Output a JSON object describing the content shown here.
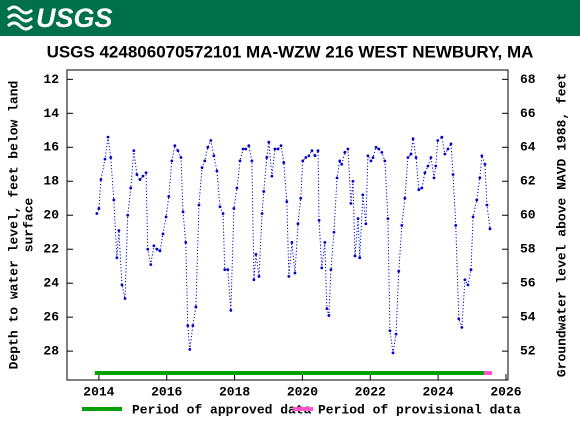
{
  "logo": "USGS",
  "chart_data": {
    "type": "line",
    "title": "USGS 424806070572101 MA-WZW  216 WEST NEWBURY, MA",
    "ylabel": [
      "Depth to water level, feet below land",
      "surface"
    ],
    "y2label": "Groundwater level above NAVD 1988, feet",
    "xlim": [
      2013.06,
      2026.06
    ],
    "xticks": [
      2014,
      2016,
      2018,
      2020,
      2022,
      2024,
      2026
    ],
    "ylim": [
      11.45,
      29.7
    ],
    "yticks": [
      12,
      14,
      16,
      18,
      20,
      22,
      24,
      26,
      28
    ],
    "y_inverted": true,
    "y2lim": [
      68.55,
      50.3
    ],
    "y2ticks": [
      52,
      54,
      56,
      58,
      60,
      62,
      64,
      66,
      68
    ],
    "series": [
      {
        "color": "#0000cc",
        "x": [
          2013.94,
          2014.0,
          2014.06,
          2014.18,
          2014.27,
          2014.35,
          2014.44,
          2014.53,
          2014.59,
          2014.68,
          2014.77,
          2014.85,
          2014.94,
          2015.03,
          2015.12,
          2015.21,
          2015.3,
          2015.39,
          2015.44,
          2015.53,
          2015.62,
          2015.71,
          2015.8,
          2015.89,
          2015.98,
          2016.06,
          2016.15,
          2016.24,
          2016.33,
          2016.42,
          2016.48,
          2016.56,
          2016.62,
          2016.68,
          2016.77,
          2016.86,
          2016.95,
          2017.04,
          2017.12,
          2017.21,
          2017.3,
          2017.39,
          2017.48,
          2017.57,
          2017.66,
          2017.71,
          2017.8,
          2017.89,
          2017.98,
          2018.07,
          2018.16,
          2018.25,
          2018.33,
          2018.42,
          2018.51,
          2018.57,
          2018.63,
          2018.72,
          2018.81,
          2018.86,
          2018.95,
          2019.01,
          2019.1,
          2019.19,
          2019.28,
          2019.37,
          2019.45,
          2019.54,
          2019.6,
          2019.69,
          2019.78,
          2019.87,
          2019.95,
          2020.01,
          2020.1,
          2020.19,
          2020.28,
          2020.37,
          2020.46,
          2020.49,
          2020.57,
          2020.66,
          2020.72,
          2020.78,
          2020.84,
          2020.93,
          2021.02,
          2021.1,
          2021.16,
          2021.25,
          2021.34,
          2021.43,
          2021.49,
          2021.55,
          2021.64,
          2021.69,
          2021.78,
          2021.87,
          2021.93,
          2022.02,
          2022.08,
          2022.17,
          2022.25,
          2022.34,
          2022.43,
          2022.52,
          2022.58,
          2022.67,
          2022.76,
          2022.84,
          2022.93,
          2023.02,
          2023.11,
          2023.2,
          2023.26,
          2023.35,
          2023.43,
          2023.52,
          2023.61,
          2023.7,
          2023.79,
          2023.88,
          2023.93,
          2023.99,
          2024.11,
          2024.2,
          2024.29,
          2024.38,
          2024.44,
          2024.52,
          2024.61,
          2024.7,
          2024.79,
          2024.88,
          2024.97,
          2025.03,
          2025.14,
          2025.23,
          2025.29,
          2025.38,
          2025.44,
          2025.53
        ],
        "values": [
          19.9,
          19.6,
          17.9,
          16.7,
          15.4,
          16.6,
          19.1,
          22.5,
          20.9,
          24.1,
          24.9,
          20.0,
          18.4,
          16.2,
          17.6,
          17.9,
          17.7,
          17.5,
          22.0,
          22.9,
          21.8,
          22.0,
          22.1,
          21.1,
          20.1,
          18.9,
          16.8,
          15.9,
          16.2,
          16.6,
          19.8,
          21.6,
          26.5,
          27.9,
          26.5,
          25.4,
          19.4,
          17.2,
          16.8,
          16.0,
          15.6,
          16.5,
          17.4,
          19.5,
          19.9,
          23.2,
          23.2,
          25.6,
          19.6,
          18.4,
          16.8,
          16.1,
          16.1,
          15.9,
          16.8,
          23.8,
          22.3,
          23.6,
          19.9,
          18.6,
          16.6,
          15.7,
          17.7,
          16.1,
          16.1,
          15.9,
          16.9,
          19.2,
          23.6,
          21.6,
          23.4,
          20.5,
          19.0,
          16.8,
          16.6,
          16.5,
          16.2,
          16.5,
          16.2,
          20.3,
          23.1,
          21.6,
          25.5,
          25.9,
          23.2,
          21.0,
          17.8,
          16.8,
          17.0,
          16.3,
          16.1,
          19.3,
          18.0,
          22.4,
          20.2,
          22.5,
          18.8,
          20.5,
          16.5,
          16.8,
          16.6,
          16.0,
          16.1,
          16.3,
          16.8,
          20.2,
          26.8,
          28.1,
          27.0,
          23.3,
          20.6,
          19.0,
          16.6,
          16.4,
          15.5,
          16.6,
          18.5,
          18.4,
          17.5,
          17.1,
          16.6,
          17.8,
          17.1,
          15.6,
          15.4,
          16.4,
          16.1,
          15.8,
          17.6,
          20.6,
          26.1,
          26.6,
          23.8,
          24.1,
          23.2,
          20.1,
          19.1,
          17.8,
          16.5,
          17.0,
          19.4,
          20.8
        ]
      }
    ],
    "periods": [
      {
        "name": "Period of approved data",
        "color": "#00a000",
        "range": [
          2013.88,
          2025.35
        ]
      },
      {
        "name": "Period of provisional data",
        "color": "#ff55cc",
        "range": [
          2025.35,
          2025.59
        ]
      }
    ]
  }
}
